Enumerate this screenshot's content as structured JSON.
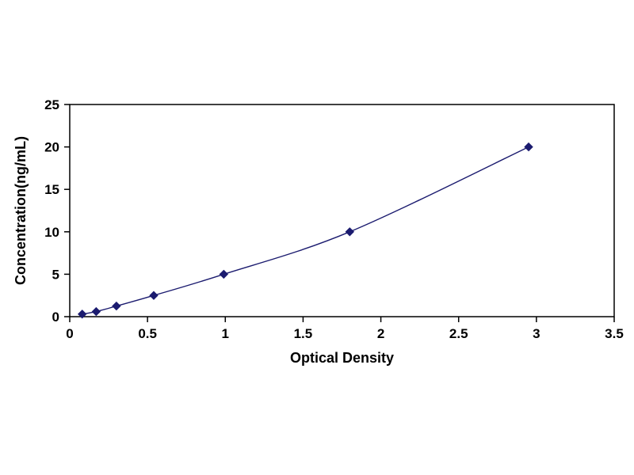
{
  "chart_data": {
    "type": "line",
    "title": "",
    "xlabel": "Optical Density",
    "ylabel": "Concentration(ng/mL)",
    "x": [
      0.08,
      0.17,
      0.3,
      0.54,
      0.99,
      1.8,
      2.95
    ],
    "y": [
      0.3,
      0.6,
      1.25,
      2.5,
      5,
      10,
      20
    ],
    "xlim": [
      0,
      3.5
    ],
    "ylim": [
      0,
      25
    ],
    "x_ticks": [
      "0",
      "0.5",
      "1",
      "1.5",
      "2",
      "2.5",
      "3",
      "3.5"
    ],
    "x_tick_values": [
      0,
      0.5,
      1,
      1.5,
      2,
      2.5,
      3,
      3.5
    ],
    "y_ticks": [
      "0",
      "5",
      "10",
      "15",
      "20",
      "25"
    ],
    "y_tick_values": [
      0,
      5,
      10,
      15,
      20,
      25
    ],
    "grid": false,
    "legend": "none",
    "marker": "diamond",
    "line_color": "#1b1b6f",
    "marker_color": "#1b1b6f",
    "axis_color": "#000000",
    "background_color": "#ffffff"
  }
}
